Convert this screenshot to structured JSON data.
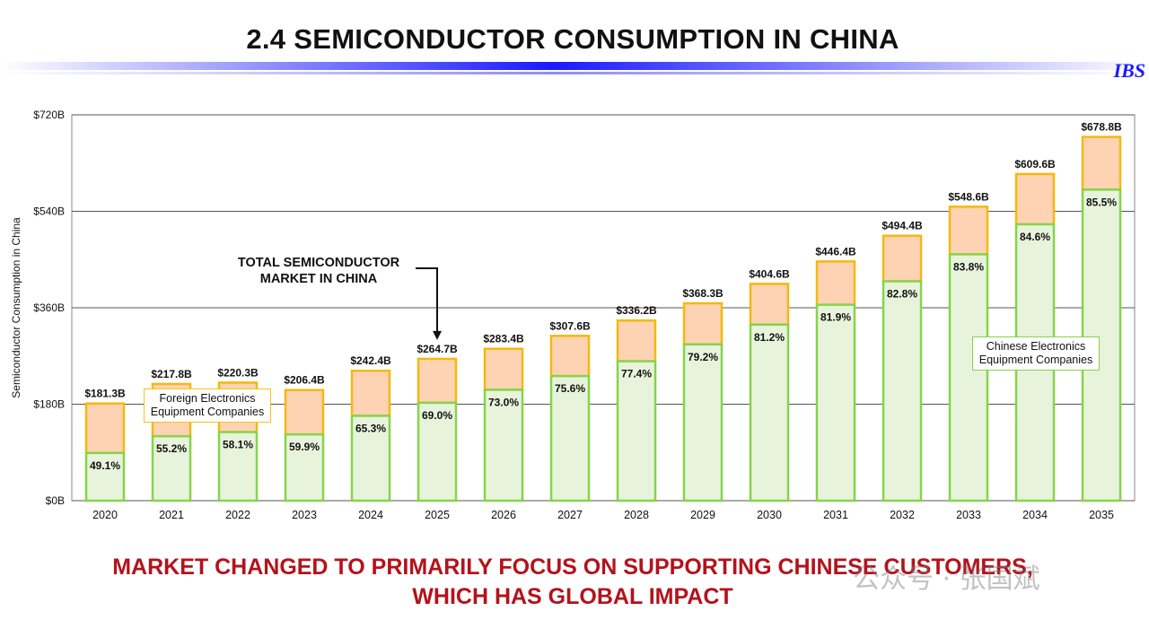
{
  "page": {
    "title": "2.4  SEMICONDUCTOR CONSUMPTION IN CHINA",
    "logo": "IBS",
    "footer_line1": "MARKET CHANGED TO PRIMARILY FOCUS ON SUPPORTING CHINESE CUSTOMERS,",
    "footer_line2": "WHICH HAS GLOBAL IMPACT",
    "watermark": "公众号 · 张国斌"
  },
  "colors": {
    "foreign_fill": "#fdd3b4",
    "foreign_stroke": "#f5b80f",
    "chinese_fill": "#e8f3dc",
    "chinese_stroke": "#86d44a",
    "grid": "#555555",
    "footer": "#b4121b"
  },
  "chart_data": {
    "type": "bar",
    "stacked": true,
    "categories": [
      "2020",
      "2021",
      "2022",
      "2023",
      "2024",
      "2025",
      "2026",
      "2027",
      "2028",
      "2029",
      "2030",
      "2031",
      "2032",
      "2033",
      "2034",
      "2035"
    ],
    "totals": [
      181.3,
      217.8,
      220.3,
      206.4,
      242.4,
      264.7,
      283.4,
      307.6,
      336.2,
      368.3,
      404.6,
      446.4,
      494.4,
      548.6,
      609.6,
      678.8
    ],
    "total_labels": [
      "$181.3B",
      "$217.8B",
      "$220.3B",
      "$206.4B",
      "$242.4B",
      "$264.7B",
      "$283.4B",
      "$307.6B",
      "$336.2B",
      "$368.3B",
      "$404.6B",
      "$446.4B",
      "$494.4B",
      "$548.6B",
      "$609.6B",
      "$678.8B"
    ],
    "chinese_share_pct": [
      49.1,
      55.2,
      58.1,
      59.9,
      65.3,
      69.0,
      73.0,
      75.6,
      77.4,
      79.2,
      81.2,
      81.9,
      82.8,
      83.8,
      84.6,
      85.5
    ],
    "share_labels": [
      "49.1%",
      "55.2%",
      "58.1%",
      "59.9%",
      "65.3%",
      "69.0%",
      "73.0%",
      "75.6%",
      "77.4%",
      "79.2%",
      "81.2%",
      "81.9%",
      "82.8%",
      "83.8%",
      "84.6%",
      "85.5%"
    ],
    "series": [
      {
        "name": "Chinese Electronics Equipment  Companies"
      },
      {
        "name": "Foreign Electronics Equipment Companies"
      }
    ],
    "ylabel": "Semiconductor Consumption in China",
    "ylim": [
      0,
      720
    ],
    "yticks": [
      0,
      180,
      360,
      540,
      720
    ],
    "ytick_labels": [
      "$0B",
      "$180B",
      "$360B",
      "$540B",
      "$720B"
    ],
    "grid": true,
    "annotation": {
      "line1": "TOTAL SEMICONDUCTOR",
      "line2": "MARKET IN CHINA",
      "target_category": "2025"
    },
    "legend_placement": "in-plot"
  }
}
